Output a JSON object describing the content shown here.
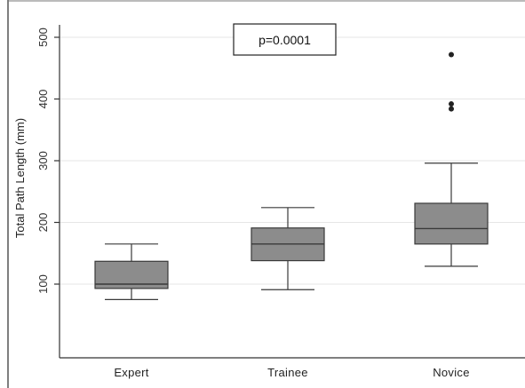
{
  "chart_data": {
    "type": "box",
    "title": "",
    "xlabel": "",
    "ylabel": "Total Path Length (mm)",
    "ylim": [
      0,
      520
    ],
    "yticks": [
      100,
      200,
      300,
      400,
      500
    ],
    "grid": true,
    "categories": [
      "Expert",
      "Trainee",
      "Novice"
    ],
    "boxes": [
      {
        "category": "Expert",
        "whisker_low": 75,
        "q1": 93,
        "median": 100,
        "q3": 137,
        "whisker_high": 165,
        "outliers": []
      },
      {
        "category": "Trainee",
        "whisker_low": 91,
        "q1": 138,
        "median": 165,
        "q3": 191,
        "whisker_high": 224,
        "outliers": []
      },
      {
        "category": "Novice",
        "whisker_low": 129,
        "q1": 165,
        "median": 190,
        "q3": 231,
        "whisker_high": 296,
        "outliers": [
          384,
          392,
          472
        ]
      }
    ],
    "annotation": "p=0.0001",
    "colors": {
      "box_fill": "#8c8c8c",
      "line": "#3a3a3a",
      "grid": "#e6e6e6",
      "outlier": "#222222"
    }
  }
}
